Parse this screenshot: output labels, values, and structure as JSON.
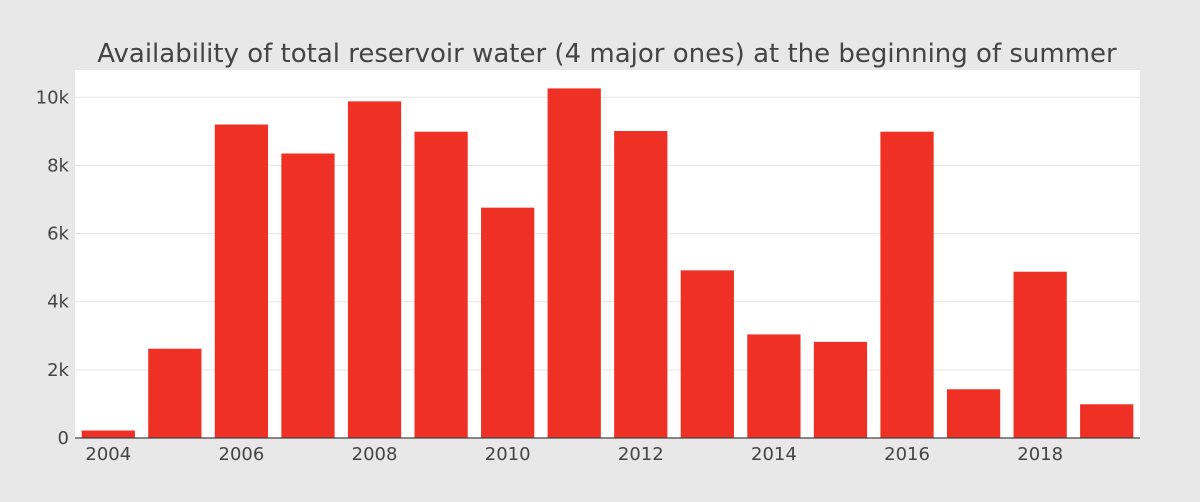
{
  "chart_data": {
    "type": "bar",
    "title": "Availability of total reservoir water (4 major ones) at the beginning of summer",
    "xlabel": "",
    "ylabel": "",
    "categories": [
      2004,
      2005,
      2006,
      2007,
      2008,
      2009,
      2010,
      2011,
      2012,
      2013,
      2014,
      2015,
      2016,
      2017,
      2018,
      2019
    ],
    "values": [
      220,
      2620,
      9200,
      8350,
      9880,
      8990,
      6760,
      10260,
      9010,
      4920,
      3040,
      2820,
      8990,
      1430,
      4880,
      990
    ],
    "ylim": [
      0,
      10800
    ],
    "y_ticks": [
      0,
      2000,
      4000,
      6000,
      8000,
      10000
    ],
    "y_tick_labels": [
      "0",
      "2k",
      "4k",
      "6k",
      "8k",
      "10k"
    ],
    "x_ticks": [
      2004,
      2006,
      2008,
      2010,
      2012,
      2014,
      2016,
      2018
    ],
    "x_tick_labels": [
      "2004",
      "2006",
      "2008",
      "2010",
      "2012",
      "2014",
      "2016",
      "2018"
    ],
    "grid": true,
    "colors": {
      "bar": "#ee3124",
      "paper": "#e8e8e8",
      "plot": "#ffffff",
      "grid": "#e6e6e6",
      "text": "#444444"
    }
  }
}
